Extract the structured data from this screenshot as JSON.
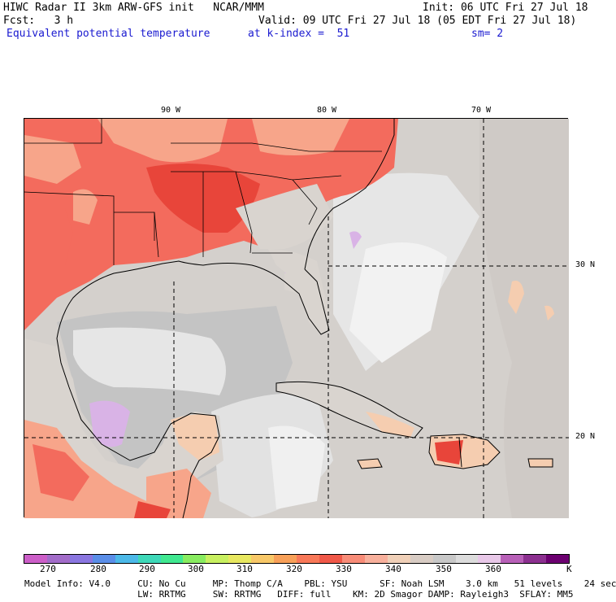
{
  "header": {
    "line1_left": "HIWC Radar II 3km ARW-GFS init   NCAR/MMM",
    "line1_right": "Init: 06 UTC Fri 27 Jul 18",
    "line2_left": "Fcst:   3 h",
    "line2_right": "Valid: 09 UTC Fri 27 Jul 18 (05 EDT Fri 27 Jul 18)",
    "line3_var": "Equivalent potential temperature",
    "line3_level": "at k-index =  51",
    "line3_sm": "sm= 2"
  },
  "map": {
    "lon_labels": [
      "90 W",
      "80 W",
      "70 W"
    ],
    "lat_labels": [
      "30 N",
      "20 N"
    ],
    "colors": {
      "background": "#d9d4cf",
      "land": "#d9d4cf",
      "light_gray": "#c0c0c0",
      "pale": "#ececec",
      "lavender": "#d9b3e6",
      "peach": "#f5cdb0",
      "salmon": "#f7a58a",
      "red": "#f36b5d",
      "deep_red": "#e8453a"
    }
  },
  "colorbar": {
    "colors": [
      "#cc5ec8",
      "#a26cc9",
      "#8a76e0",
      "#5a8ee8",
      "#4cb9e8",
      "#3ed8b8",
      "#40e890",
      "#88ec60",
      "#c8f060",
      "#e8e860",
      "#f8c868",
      "#f8a058",
      "#f87858",
      "#f05848",
      "#f88c78",
      "#f8b09c",
      "#f0d0b8",
      "#d8ccc4",
      "#c8c8c8",
      "#dcdcdc",
      "#e8c8e8",
      "#b860b8",
      "#8c3090",
      "#6c0070"
    ],
    "tick_labels": [
      "270",
      "280",
      "290",
      "300",
      "310",
      "320",
      "330",
      "340",
      "350",
      "360",
      "K"
    ]
  },
  "footer": {
    "line1": "Model Info: V4.0     CU: No Cu     MP: Thomp C/A    PBL: YSU      SF: Noah LSM    3.0 km   51 levels    24 sec",
    "line2": "                     LW: RRTMG     SW: RRTMG   DIFF: full    KM: 2D Smagor DAMP: Rayleigh3  SFLAY: MM5"
  }
}
